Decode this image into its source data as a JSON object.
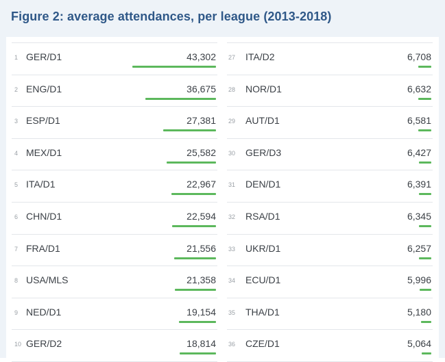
{
  "title": "Figure 2: average attendances, per league (2013-2018)",
  "colors": {
    "title": "#2f5888",
    "bar": "#5cb85c",
    "text": "#3a3f45",
    "rank": "#9aa0a6"
  },
  "chart_data": {
    "type": "bar",
    "orientation": "horizontal",
    "title": "Figure 2: average attendances, per league (2013-2018)",
    "rows": [
      {
        "rank": "1",
        "league": "GER/D1",
        "value": 43302,
        "label": "43,302"
      },
      {
        "rank": "2",
        "league": "ENG/D1",
        "value": 36675,
        "label": "36,675"
      },
      {
        "rank": "3",
        "league": "ESP/D1",
        "value": 27381,
        "label": "27,381"
      },
      {
        "rank": "4",
        "league": "MEX/D1",
        "value": 25582,
        "label": "25,582"
      },
      {
        "rank": "5",
        "league": "ITA/D1",
        "value": 22967,
        "label": "22,967"
      },
      {
        "rank": "6",
        "league": "CHN/D1",
        "value": 22594,
        "label": "22,594"
      },
      {
        "rank": "7",
        "league": "FRA/D1",
        "value": 21556,
        "label": "21,556"
      },
      {
        "rank": "8",
        "league": "USA/MLS",
        "value": 21358,
        "label": "21,358"
      },
      {
        "rank": "9",
        "league": "NED/D1",
        "value": 19154,
        "label": "19,154"
      },
      {
        "rank": "10",
        "league": "GER/D2",
        "value": 18814,
        "label": "18,814"
      },
      {
        "rank": "27",
        "league": "ITA/D2",
        "value": 6708,
        "label": "6,708"
      },
      {
        "rank": "28",
        "league": "NOR/D1",
        "value": 6632,
        "label": "6,632"
      },
      {
        "rank": "29",
        "league": "AUT/D1",
        "value": 6581,
        "label": "6,581"
      },
      {
        "rank": "30",
        "league": "GER/D3",
        "value": 6427,
        "label": "6,427"
      },
      {
        "rank": "31",
        "league": "DEN/D1",
        "value": 6391,
        "label": "6,391"
      },
      {
        "rank": "32",
        "league": "RSA/D1",
        "value": 6345,
        "label": "6,345"
      },
      {
        "rank": "33",
        "league": "UKR/D1",
        "value": 6257,
        "label": "6,257"
      },
      {
        "rank": "34",
        "league": "ECU/D1",
        "value": 5996,
        "label": "5,996"
      },
      {
        "rank": "35",
        "league": "THA/D1",
        "value": 5180,
        "label": "5,180"
      },
      {
        "rank": "36",
        "league": "CZE/D1",
        "value": 5064,
        "label": "5,064"
      }
    ],
    "columns": 2,
    "rows_per_column": 10
  }
}
